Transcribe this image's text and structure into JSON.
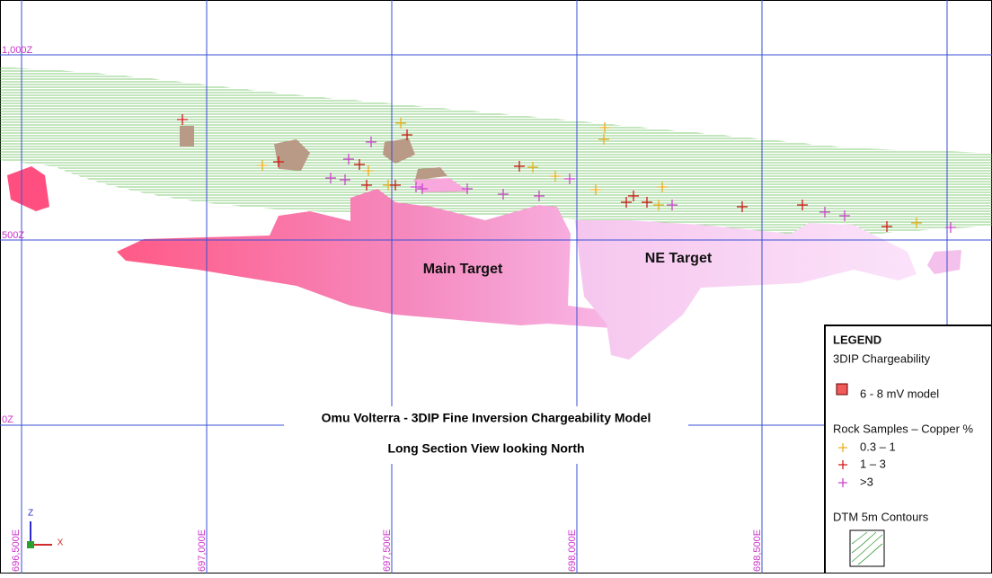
{
  "elevation_labels": [
    "1,000Z",
    "500Z",
    "0Z"
  ],
  "easting_labels": [
    "696,500E",
    "697,000E",
    "697,500E",
    "698,000E",
    "698,500E"
  ],
  "annotations": {
    "main": "Main Target",
    "ne": "NE Target"
  },
  "title": {
    "line1": "Omu Volterra - 3DIP Fine Inversion Chargeability Model",
    "line2": "Long Section View looking North"
  },
  "axis_icon": {
    "z": "Z",
    "x": "X"
  },
  "legend": {
    "heading": "LEGEND",
    "section1": "3DIP Chargeability",
    "model": "6 - 8 mV model",
    "section2": "Rock Samples – Copper %",
    "items": [
      "0.3 – 1",
      "1 – 3",
      ">3"
    ],
    "section3": "DTM 5m Contours"
  }
}
